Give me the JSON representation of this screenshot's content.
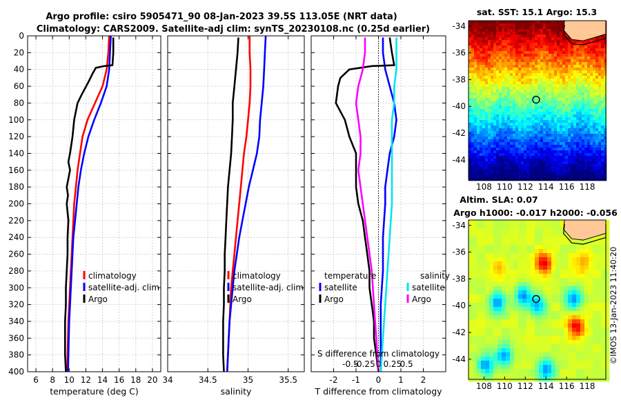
{
  "header": {
    "line1": "Argo profile: csiro 5905471_90 08-Jan-2023 39.5S 113.05E (NRT data)",
    "line2": "Climatology: CARS2009. Satellite-adj clim: synTS_20230108.nc (0.25d earlier)"
  },
  "colors": {
    "climatology": "#ff0000",
    "satellite": "#0000ff",
    "argo": "#000000",
    "s_satellite": "#00e5ee",
    "s_argo": "#ff00ff",
    "land": "#ffc896"
  },
  "chart_data": [
    {
      "id": "temperature",
      "type": "line",
      "xlabel": "temperature (deg C)",
      "ylabel": "",
      "xlim": [
        5,
        21
      ],
      "ylim": [
        400,
        0
      ],
      "xticks": [
        6,
        8,
        10,
        12,
        14,
        16,
        18,
        20
      ],
      "yticks": [
        0,
        20,
        40,
        60,
        80,
        100,
        120,
        140,
        160,
        180,
        200,
        220,
        240,
        260,
        280,
        300,
        320,
        340,
        360,
        380,
        400
      ],
      "legend": [
        "climatology",
        "satellite-adj. clim",
        "Argo"
      ],
      "series": [
        {
          "name": "climatology",
          "color": "#ff0000",
          "points": [
            [
              14.8,
              0
            ],
            [
              14.7,
              20
            ],
            [
              14.5,
              40
            ],
            [
              14.0,
              60
            ],
            [
              13.1,
              80
            ],
            [
              12.2,
              100
            ],
            [
              11.6,
              120
            ],
            [
              11.3,
              140
            ],
            [
              11.0,
              160
            ],
            [
              10.8,
              180
            ],
            [
              10.6,
              200
            ],
            [
              10.5,
              220
            ],
            [
              10.4,
              240
            ],
            [
              10.3,
              260
            ],
            [
              10.2,
              280
            ],
            [
              10.1,
              300
            ],
            [
              10.0,
              320
            ],
            [
              9.9,
              340
            ],
            [
              9.85,
              360
            ],
            [
              9.8,
              380
            ],
            [
              9.75,
              400
            ]
          ]
        },
        {
          "name": "satellite-adj. clim",
          "color": "#0000ff",
          "points": [
            [
              15.0,
              0
            ],
            [
              14.9,
              20
            ],
            [
              14.8,
              40
            ],
            [
              14.5,
              60
            ],
            [
              13.8,
              80
            ],
            [
              13.0,
              100
            ],
            [
              12.3,
              120
            ],
            [
              11.8,
              140
            ],
            [
              11.4,
              160
            ],
            [
              11.1,
              180
            ],
            [
              10.9,
              200
            ],
            [
              10.7,
              220
            ],
            [
              10.5,
              240
            ],
            [
              10.4,
              260
            ],
            [
              10.3,
              280
            ],
            [
              10.2,
              300
            ],
            [
              10.1,
              320
            ],
            [
              10.0,
              340
            ],
            [
              9.95,
              360
            ],
            [
              9.9,
              380
            ],
            [
              9.85,
              400
            ]
          ]
        },
        {
          "name": "Argo",
          "color": "#000000",
          "points": [
            [
              15.3,
              2
            ],
            [
              15.3,
              20
            ],
            [
              15.2,
              35
            ],
            [
              14.2,
              36
            ],
            [
              13.2,
              38
            ],
            [
              12.8,
              45
            ],
            [
              12.3,
              55
            ],
            [
              11.5,
              70
            ],
            [
              11.0,
              80
            ],
            [
              10.6,
              100
            ],
            [
              10.4,
              120
            ],
            [
              10.1,
              140
            ],
            [
              9.9,
              150
            ],
            [
              10.1,
              160
            ],
            [
              9.8,
              175
            ],
            [
              9.7,
              180
            ],
            [
              9.85,
              190
            ],
            [
              9.7,
              200
            ],
            [
              9.9,
              220
            ],
            [
              9.8,
              240
            ],
            [
              9.8,
              260
            ],
            [
              9.7,
              280
            ],
            [
              9.6,
              300
            ],
            [
              9.6,
              320
            ],
            [
              9.5,
              340
            ],
            [
              9.5,
              360
            ],
            [
              9.5,
              380
            ],
            [
              9.6,
              400
            ]
          ]
        }
      ]
    },
    {
      "id": "salinity",
      "type": "line",
      "xlabel": "salinity",
      "xlim": [
        34,
        35.7
      ],
      "ylim": [
        400,
        0
      ],
      "xticks": [
        34,
        34.5,
        35,
        35.5
      ],
      "legend": [
        "climatology",
        "satellite-adj. clim",
        "Argo"
      ],
      "series": [
        {
          "name": "climatology",
          "color": "#ff0000",
          "points": [
            [
              35.02,
              0
            ],
            [
              35.02,
              20
            ],
            [
              35.03,
              40
            ],
            [
              35.03,
              60
            ],
            [
              35.02,
              80
            ],
            [
              35.0,
              100
            ],
            [
              34.98,
              120
            ],
            [
              34.95,
              140
            ],
            [
              34.93,
              160
            ],
            [
              34.91,
              180
            ],
            [
              34.89,
              200
            ],
            [
              34.87,
              220
            ],
            [
              34.85,
              240
            ],
            [
              34.83,
              260
            ],
            [
              34.81,
              280
            ],
            [
              34.79,
              300
            ],
            [
              34.78,
              320
            ],
            [
              34.77,
              340
            ],
            [
              34.76,
              360
            ],
            [
              34.75,
              380
            ],
            [
              34.74,
              400
            ]
          ]
        },
        {
          "name": "satellite-adj. clim",
          "color": "#0000ff",
          "points": [
            [
              35.22,
              0
            ],
            [
              35.21,
              20
            ],
            [
              35.2,
              40
            ],
            [
              35.19,
              60
            ],
            [
              35.17,
              80
            ],
            [
              35.15,
              100
            ],
            [
              35.14,
              120
            ],
            [
              35.11,
              140
            ],
            [
              35.06,
              160
            ],
            [
              35.01,
              180
            ],
            [
              34.97,
              200
            ],
            [
              34.93,
              220
            ],
            [
              34.89,
              240
            ],
            [
              34.86,
              260
            ],
            [
              34.83,
              280
            ],
            [
              34.81,
              300
            ],
            [
              34.79,
              320
            ],
            [
              34.77,
              340
            ],
            [
              34.76,
              360
            ],
            [
              34.75,
              380
            ],
            [
              34.74,
              400
            ]
          ]
        },
        {
          "name": "Argo",
          "color": "#000000",
          "points": [
            [
              34.88,
              2
            ],
            [
              34.87,
              20
            ],
            [
              34.85,
              40
            ],
            [
              34.83,
              60
            ],
            [
              34.81,
              80
            ],
            [
              34.81,
              100
            ],
            [
              34.8,
              120
            ],
            [
              34.79,
              140
            ],
            [
              34.77,
              160
            ],
            [
              34.75,
              180
            ],
            [
              34.74,
              200
            ],
            [
              34.73,
              220
            ],
            [
              34.72,
              240
            ],
            [
              34.71,
              260
            ],
            [
              34.71,
              280
            ],
            [
              34.7,
              300
            ],
            [
              34.7,
              320
            ],
            [
              34.69,
              340
            ],
            [
              34.69,
              360
            ],
            [
              34.69,
              380
            ],
            [
              34.7,
              400
            ]
          ]
        }
      ]
    },
    {
      "id": "difference",
      "type": "line",
      "xlabel": "T difference from climatology",
      "top_label": "S difference from climatology",
      "xlim": [
        -3,
        3
      ],
      "ylim": [
        400,
        0
      ],
      "xticks": [
        -2,
        -1,
        0,
        1,
        2
      ],
      "xtick_labels": [
        "-2",
        "-1",
        "0",
        "1",
        "2"
      ],
      "s_ticks": [
        "-0.5",
        "-0.25",
        "0",
        "0.25",
        "0.5"
      ],
      "legend_titles": [
        "temperature",
        "salinity"
      ],
      "legend_temperature": [
        "satellite",
        "Argo"
      ],
      "legend_salinity": [
        "satellite",
        "Argo"
      ],
      "series": [
        {
          "name": "T satellite",
          "color": "#0000ff",
          "points": [
            [
              0.2,
              2
            ],
            [
              0.2,
              20
            ],
            [
              0.3,
              40
            ],
            [
              0.5,
              60
            ],
            [
              0.7,
              80
            ],
            [
              0.8,
              100
            ],
            [
              0.7,
              120
            ],
            [
              0.5,
              140
            ],
            [
              0.4,
              160
            ],
            [
              0.3,
              180
            ],
            [
              0.3,
              200
            ],
            [
              0.2,
              240
            ],
            [
              0.2,
              280
            ],
            [
              0.1,
              320
            ],
            [
              0.1,
              360
            ],
            [
              0.1,
              400
            ]
          ]
        },
        {
          "name": "T Argo",
          "color": "#000000",
          "points": [
            [
              0.5,
              2
            ],
            [
              0.6,
              20
            ],
            [
              0.7,
              35
            ],
            [
              -0.3,
              36
            ],
            [
              -1.3,
              40
            ],
            [
              -1.7,
              50
            ],
            [
              -1.8,
              60
            ],
            [
              -1.9,
              80
            ],
            [
              -1.5,
              100
            ],
            [
              -1.3,
              120
            ],
            [
              -1.0,
              140
            ],
            [
              -1.0,
              160
            ],
            [
              -1.0,
              180
            ],
            [
              -0.9,
              200
            ],
            [
              -0.7,
              220
            ],
            [
              -0.6,
              240
            ],
            [
              -0.5,
              260
            ],
            [
              -0.4,
              280
            ],
            [
              -0.4,
              300
            ],
            [
              -0.3,
              320
            ],
            [
              -0.2,
              340
            ],
            [
              -0.2,
              360
            ],
            [
              -0.1,
              380
            ],
            [
              0,
              400
            ]
          ]
        },
        {
          "name": "S satellite",
          "color": "#00e5ee",
          "points": [
            [
              0.8,
              2
            ],
            [
              0.8,
              20
            ],
            [
              0.8,
              40
            ],
            [
              0.7,
              60
            ],
            [
              0.7,
              80
            ],
            [
              0.6,
              100
            ],
            [
              0.6,
              120
            ],
            [
              0.6,
              140
            ],
            [
              0.6,
              160
            ],
            [
              0.6,
              200
            ],
            [
              0.5,
              240
            ],
            [
              0.4,
              280
            ],
            [
              0.3,
              320
            ],
            [
              0.2,
              360
            ],
            [
              0.1,
              400
            ]
          ]
        },
        {
          "name": "S Argo",
          "color": "#ff00ff",
          "points": [
            [
              -0.6,
              2
            ],
            [
              -0.6,
              20
            ],
            [
              -0.7,
              40
            ],
            [
              -0.9,
              60
            ],
            [
              -1.0,
              80
            ],
            [
              -0.9,
              100
            ],
            [
              -0.8,
              120
            ],
            [
              -0.8,
              140
            ],
            [
              -0.9,
              160
            ],
            [
              -0.8,
              180
            ],
            [
              -0.7,
              200
            ],
            [
              -0.5,
              240
            ],
            [
              -0.3,
              280
            ],
            [
              -0.2,
              320
            ],
            [
              -0.1,
              360
            ],
            [
              0,
              400
            ]
          ]
        }
      ]
    },
    {
      "id": "sst_map",
      "type": "heatmap",
      "title": "sat. SST: 15.1 Argo: 15.3",
      "xlim": [
        106.5,
        119.8
      ],
      "ylim": [
        -45.5,
        -33.6
      ],
      "xticks": [
        108,
        110,
        112,
        114,
        116,
        118
      ],
      "yticks": [
        -34,
        -36,
        -38,
        -40,
        -42,
        -44
      ],
      "argo_marker": [
        113.05,
        -39.5
      ]
    },
    {
      "id": "sla_map",
      "type": "heatmap",
      "title_line1": "Altim. SLA: 0.07",
      "title_line2": "Argo h1000: -0.017 h2000: -0.056",
      "xlim": [
        106.5,
        119.8
      ],
      "ylim": [
        -45.5,
        -33.6
      ],
      "xticks": [
        108,
        110,
        112,
        114,
        116,
        118
      ],
      "yticks": [
        -34,
        -36,
        -38,
        -40,
        -42,
        -44
      ],
      "argo_marker": [
        113.05,
        -39.5
      ]
    }
  ],
  "footer": {
    "stamp": "©IMOS 13-Jan-2023 11:40:20"
  }
}
